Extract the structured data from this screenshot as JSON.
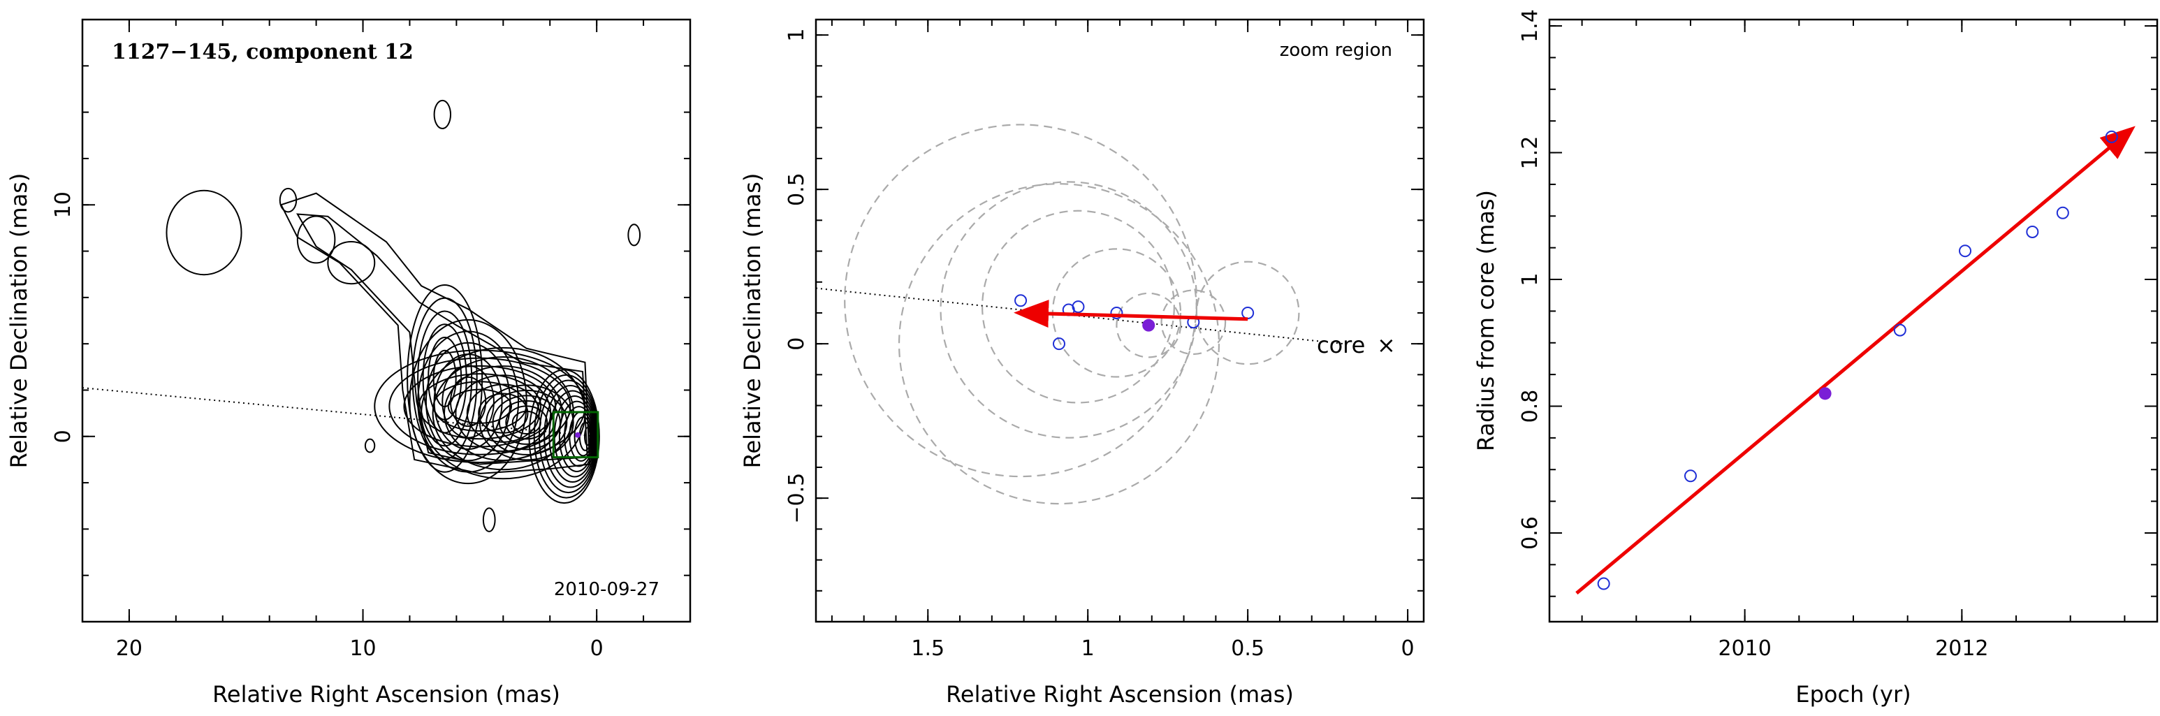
{
  "chart_data": [
    {
      "type": "contour",
      "title": "1127−145, component 12",
      "date_label": "2010-09-27",
      "xlabel": "Relative Right Ascension (mas)",
      "ylabel": "Relative Declination (mas)",
      "xlim": [
        22,
        -4
      ],
      "ylim": [
        -8,
        18
      ],
      "xticks": [
        "20",
        "10",
        "0"
      ],
      "xtick_values": [
        20,
        10,
        0
      ],
      "yticks": [
        "0",
        "10"
      ],
      "ytick_values": [
        0,
        10
      ],
      "colors": {
        "contour": "#000000",
        "box": "#006400",
        "marker": "#7a1fd6"
      }
    },
    {
      "type": "scatter",
      "corner_label": "zoom region",
      "core_label": "core",
      "xlabel": "Relative Right Ascension (mas)",
      "ylabel": "Relative Declination (mas)",
      "xlim": [
        1.85,
        -0.05
      ],
      "ylim": [
        -0.9,
        1.05
      ],
      "xticks": [
        "1.5",
        "1",
        "0.5",
        "0"
      ],
      "xtick_values": [
        1.5,
        1,
        0.5,
        0
      ],
      "yticks": [
        "−0.5",
        "0",
        "0.5",
        "1"
      ],
      "ytick_values": [
        -0.5,
        0,
        0.5,
        1
      ],
      "points": [
        {
          "x": 1.21,
          "y": 0.14,
          "r": 0.55
        },
        {
          "x": 1.09,
          "y": 0.0,
          "r": 0.5
        },
        {
          "x": 1.06,
          "y": 0.11,
          "r": 0.4
        },
        {
          "x": 1.03,
          "y": 0.12,
          "r": 0.3
        },
        {
          "x": 0.91,
          "y": 0.1,
          "r": 0.2
        },
        {
          "x": 0.67,
          "y": 0.07,
          "r": 0.1
        },
        {
          "x": 0.5,
          "y": 0.1,
          "r": 0.16
        }
      ],
      "highlight": {
        "x": 0.81,
        "y": 0.06,
        "r": 0.1
      },
      "arrow": {
        "x1": 0.5,
        "y1": 0.08,
        "x2": 1.21,
        "y2": 0.1
      },
      "colors": {
        "points": "#1f2fd6",
        "highlight": "#7a1fd6",
        "arrow": "#ee0000",
        "circles": "#aaaaaa"
      }
    },
    {
      "type": "scatter",
      "xlabel": "Epoch (yr)",
      "ylabel": "Radius from core (mas)",
      "xlim": [
        2008.2,
        2013.8
      ],
      "ylim": [
        0.46,
        1.41
      ],
      "xticks": [
        "2010",
        "2012"
      ],
      "xtick_values": [
        2010,
        2012
      ],
      "yticks": [
        "0.6",
        "0.8",
        "1",
        "1.2",
        "1.4"
      ],
      "ytick_values": [
        0.6,
        0.8,
        1.0,
        1.2,
        1.4
      ],
      "points": [
        {
          "x": 2008.7,
          "y": 0.52
        },
        {
          "x": 2009.5,
          "y": 0.69
        },
        {
          "x": 2011.43,
          "y": 0.92
        },
        {
          "x": 2012.03,
          "y": 1.045
        },
        {
          "x": 2012.65,
          "y": 1.075
        },
        {
          "x": 2012.93,
          "y": 1.105
        },
        {
          "x": 2013.38,
          "y": 1.225
        }
      ],
      "highlight": {
        "x": 2010.74,
        "y": 0.82
      },
      "fit_arrow": {
        "x1": 2008.45,
        "y1": 0.505,
        "x2": 2013.55,
        "y2": 1.235
      },
      "colors": {
        "points": "#1f2fd6",
        "highlight": "#7a1fd6",
        "arrow": "#ee0000"
      }
    }
  ]
}
